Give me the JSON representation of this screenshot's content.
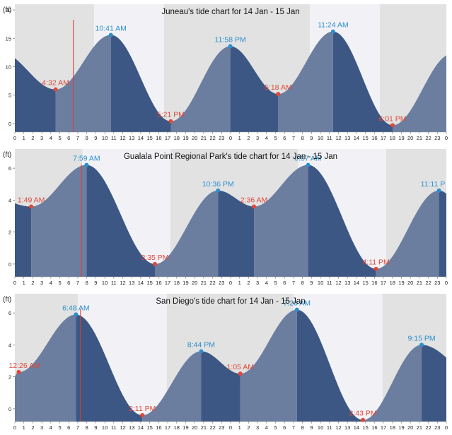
{
  "chart_data": [
    {
      "type": "area",
      "title": "Juneau's tide chart for 14 Jan - 15 Jan",
      "ylabel": "(ft)",
      "xlabel": "",
      "x_tick_labels": [
        "0",
        "1",
        "2",
        "3",
        "4",
        "5",
        "6",
        "7",
        "8",
        "9",
        "10",
        "11",
        "12",
        "13",
        "14",
        "15",
        "16",
        "17",
        "18",
        "19",
        "20",
        "21",
        "22",
        "23",
        "0",
        "1",
        "2",
        "3",
        "4",
        "5",
        "6",
        "7",
        "8",
        "9",
        "10",
        "11",
        "12",
        "13",
        "14",
        "15",
        "16",
        "17",
        "18",
        "19",
        "20",
        "21",
        "22",
        "23",
        "0"
      ],
      "y_ticks": [
        0,
        5,
        10,
        15,
        20
      ],
      "ylim": [
        -1.5,
        21
      ],
      "x_range_hours": [
        0,
        48
      ],
      "daylight_hours": [
        [
          8.8,
          16.6
        ],
        [
          32.8,
          40.6
        ]
      ],
      "current_time_hour": 6.5,
      "tide_points": [
        {
          "hour": 4.53,
          "height": 6.0,
          "label": "4:32 AM",
          "kind": "low"
        },
        {
          "hour": 10.68,
          "height": 15.6,
          "label": "10:41 AM",
          "kind": "high"
        },
        {
          "hour": 17.35,
          "height": 0.4,
          "label": "5:21 PM",
          "kind": "low"
        },
        {
          "hour": 23.97,
          "height": 13.6,
          "label": "11:58 PM",
          "kind": "high"
        },
        {
          "hour": 29.3,
          "height": 5.2,
          "label": "5:18 AM",
          "kind": "low"
        },
        {
          "hour": 35.4,
          "height": 16.2,
          "label": "11:24 AM",
          "kind": "high"
        },
        {
          "hour": 42.02,
          "height": -0.3,
          "label": "6:01 PM",
          "kind": "low"
        }
      ],
      "edge_heights": [
        11.5,
        12.0
      ]
    },
    {
      "type": "area",
      "title": "Gualala Point Regional Park's tide chart for 14 Jan - 15 Jan",
      "ylabel": "(ft)",
      "xlabel": "",
      "x_tick_labels": [
        "0",
        "1",
        "2",
        "3",
        "4",
        "5",
        "6",
        "7",
        "8",
        "9",
        "10",
        "11",
        "12",
        "13",
        "14",
        "15",
        "16",
        "17",
        "18",
        "19",
        "20",
        "21",
        "22",
        "23",
        "0",
        "1",
        "2",
        "3",
        "4",
        "5",
        "6",
        "7",
        "8",
        "9",
        "10",
        "11",
        "12",
        "13",
        "14",
        "15",
        "16",
        "17",
        "18",
        "19",
        "20",
        "21",
        "22",
        "23",
        "0"
      ],
      "y_ticks": [
        0,
        2,
        4,
        6
      ],
      "ylim": [
        -0.8,
        7.2
      ],
      "x_range_hours": [
        0,
        48
      ],
      "daylight_hours": [
        [
          7.5,
          17.3
        ],
        [
          31.5,
          41.3
        ]
      ],
      "current_time_hour": 7.4,
      "tide_points": [
        {
          "hour": 1.82,
          "height": 3.6,
          "label": "1:49 AM",
          "kind": "low"
        },
        {
          "hour": 7.98,
          "height": 6.2,
          "label": "7:59 AM",
          "kind": "high"
        },
        {
          "hour": 15.58,
          "height": 0.0,
          "label": "3:35 PM",
          "kind": "low"
        },
        {
          "hour": 22.6,
          "height": 4.6,
          "label": "10:36 PM",
          "kind": "high"
        },
        {
          "hour": 26.6,
          "height": 3.6,
          "label": "2:36 AM",
          "kind": "low"
        },
        {
          "hour": 32.62,
          "height": 6.2,
          "label": "8:37 AM",
          "kind": "high"
        },
        {
          "hour": 40.18,
          "height": -0.3,
          "label": "4:11 PM",
          "kind": "low"
        },
        {
          "hour": 47.18,
          "height": 4.6,
          "label": "11:11 P",
          "kind": "high"
        }
      ],
      "edge_heights": [
        3.8,
        4.4
      ]
    },
    {
      "type": "area",
      "title": "San Diego's tide chart for 14 Jan - 15 Jan",
      "ylabel": "(ft)",
      "xlabel": "",
      "x_tick_labels": [
        "0",
        "1",
        "2",
        "3",
        "4",
        "5",
        "6",
        "7",
        "8",
        "9",
        "10",
        "11",
        "12",
        "13",
        "14",
        "15",
        "16",
        "17",
        "18",
        "19",
        "20",
        "21",
        "22",
        "23",
        "0",
        "1",
        "2",
        "3",
        "4",
        "5",
        "6",
        "7",
        "8",
        "9",
        "10",
        "11",
        "12",
        "13",
        "14",
        "15",
        "16",
        "17",
        "18",
        "19",
        "20",
        "21",
        "22",
        "23",
        "0"
      ],
      "y_ticks": [
        0,
        2,
        4,
        6
      ],
      "ylim": [
        -0.8,
        7.2
      ],
      "x_range_hours": [
        0,
        48
      ],
      "daylight_hours": [
        [
          7.0,
          16.9
        ],
        [
          31.0,
          40.9
        ]
      ],
      "current_time_hour": 7.3,
      "tide_points": [
        {
          "hour": 0.43,
          "height": 2.3,
          "label": "12:26 AM",
          "kind": "low"
        },
        {
          "hour": 6.8,
          "height": 5.9,
          "label": "6:48 AM",
          "kind": "high"
        },
        {
          "hour": 14.18,
          "height": -0.4,
          "label": "2:11 PM",
          "kind": "low"
        },
        {
          "hour": 20.73,
          "height": 3.6,
          "label": "8:44 PM",
          "kind": "high"
        },
        {
          "hour": 25.08,
          "height": 2.2,
          "label": "1:05 AM",
          "kind": "low"
        },
        {
          "hour": 31.38,
          "height": 6.2,
          "label": "7:23 AM",
          "kind": "high"
        },
        {
          "hour": 38.72,
          "height": -0.7,
          "label": "2:43 PM",
          "kind": "low"
        },
        {
          "hour": 45.25,
          "height": 4.0,
          "label": "9:15 PM",
          "kind": "high"
        }
      ],
      "edge_heights": [
        2.0,
        3.2
      ]
    }
  ]
}
